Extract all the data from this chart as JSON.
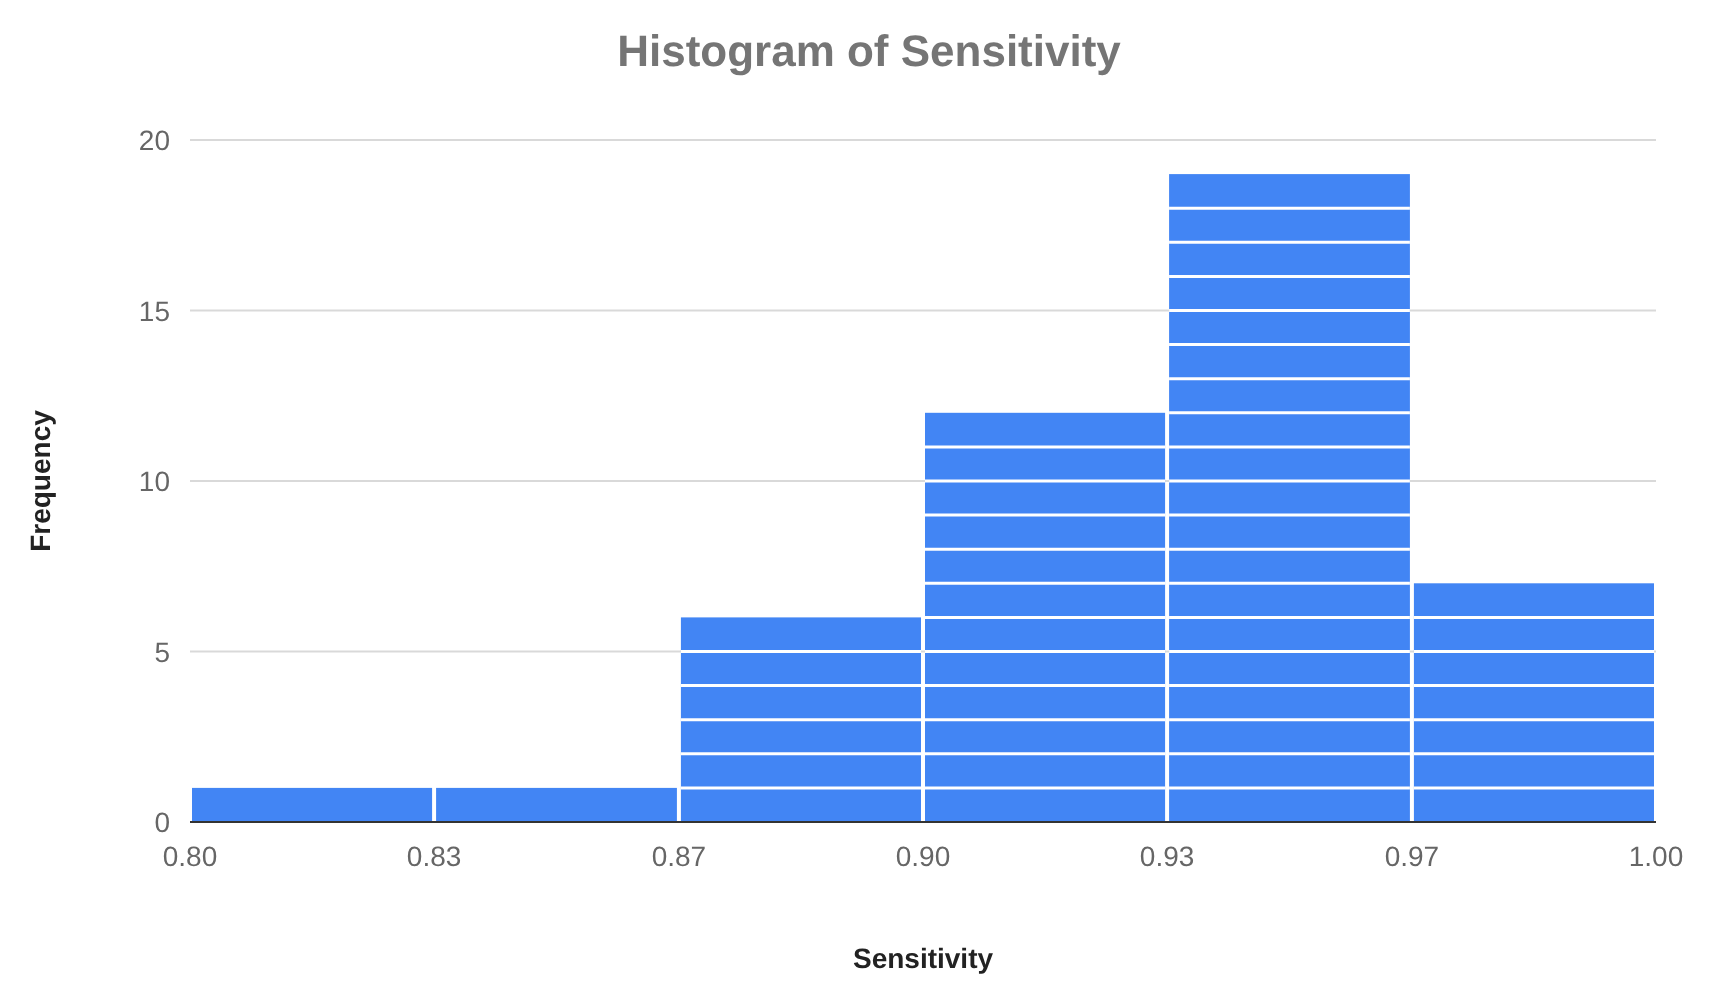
{
  "chart_data": {
    "type": "histogram",
    "title": "Histogram of Sensitivity",
    "xlabel": "Sensitivity",
    "ylabel": "Frequency",
    "bins": [
      0.8,
      0.8333,
      0.8667,
      0.9,
      0.9333,
      0.9667,
      1.0
    ],
    "values": [
      1,
      1,
      6,
      12,
      19,
      7
    ],
    "color": "#4285f4",
    "xlim": [
      0.8,
      1.0
    ],
    "xticks": [
      {
        "value": 0.8,
        "label": "0.80"
      },
      {
        "value": 0.8333,
        "label": "0.83"
      },
      {
        "value": 0.8667,
        "label": "0.87"
      },
      {
        "value": 0.9,
        "label": "0.90"
      },
      {
        "value": 0.9333,
        "label": "0.93"
      },
      {
        "value": 0.9667,
        "label": "0.97"
      },
      {
        "value": 1.0,
        "label": "1.00"
      }
    ],
    "ylim": [
      0,
      20
    ],
    "yticks": [
      0,
      5,
      10,
      15,
      20
    ],
    "grid": "y"
  }
}
